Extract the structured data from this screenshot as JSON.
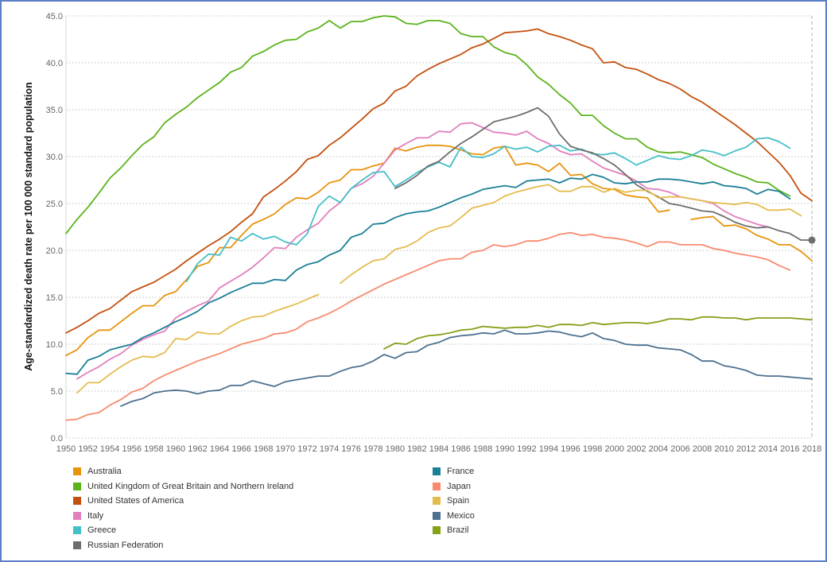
{
  "chart_data": {
    "type": "line",
    "title": "",
    "xlabel": "",
    "ylabel": "Age-standardized death rate per 100 000 standard population",
    "xlim": [
      1950,
      2018
    ],
    "ylim": [
      0,
      45
    ],
    "grid": true,
    "legend_position": "bottom",
    "x_ticks": [
      "1950",
      "1952",
      "1954",
      "1956",
      "1958",
      "1960",
      "1962",
      "1964",
      "1966",
      "1968",
      "1970",
      "1972",
      "1974",
      "1976",
      "1978",
      "1980",
      "1982",
      "1984",
      "1986",
      "1988",
      "1990",
      "1992",
      "1994",
      "1996",
      "1998",
      "2000",
      "2002",
      "2004",
      "2006",
      "2008",
      "2010",
      "2012",
      "2014",
      "2016",
      "2018"
    ],
    "y_ticks": [
      "0.0",
      "5.0",
      "10.0",
      "15.0",
      "20.0",
      "25.0",
      "30.0",
      "35.0",
      "40.0",
      "45.0"
    ],
    "end_marker": {
      "series": "Russian Federation",
      "x": 2018,
      "y": 21.1
    },
    "series": [
      {
        "name": "Australia",
        "color": "#e8930c",
        "start": 1950,
        "values": [
          8.8,
          9.4,
          10.7,
          11.5,
          11.5,
          12.4,
          13.3,
          14.1,
          14.1,
          15.2,
          15.6,
          16.9,
          18.3,
          18.7,
          20.3,
          20.3,
          21.6,
          22.8,
          23.3,
          23.9,
          24.9,
          25.6,
          25.5,
          26.2,
          27.2,
          27.5,
          28.6,
          28.6,
          29.0,
          29.3,
          30.9,
          30.6,
          31.0,
          31.2,
          31.2,
          31.1,
          30.7,
          30.3,
          30.2,
          30.9,
          31.1,
          29.1,
          29.3,
          29.1,
          28.4,
          29.3,
          28.0,
          28.1,
          27.1,
          26.6,
          26.5,
          25.9,
          25.7,
          25.6,
          24.1,
          24.3,
          null,
          23.3,
          23.5,
          23.6,
          22.6,
          22.7,
          22.3,
          21.6,
          21.2,
          20.6,
          20.6,
          19.9,
          18.9
        ]
      },
      {
        "name": "United Kingdom of Great Britain and Northern Ireland",
        "color": "#5bb31c",
        "start": 1950,
        "values": [
          21.8,
          23.3,
          24.6,
          26.1,
          27.7,
          28.8,
          30.1,
          31.3,
          32.1,
          33.6,
          34.5,
          35.3,
          36.3,
          37.1,
          37.9,
          39.0,
          39.5,
          40.7,
          41.2,
          41.9,
          42.4,
          42.5,
          43.3,
          43.7,
          44.5,
          43.7,
          44.4,
          44.4,
          44.8,
          45.0,
          44.9,
          44.2,
          44.1,
          44.5,
          44.5,
          44.2,
          43.1,
          42.8,
          42.8,
          41.7,
          41.1,
          40.8,
          39.8,
          38.5,
          37.7,
          36.6,
          35.7,
          34.4,
          34.4,
          33.3,
          32.5,
          31.9,
          31.9,
          31.0,
          30.5,
          30.4,
          30.5,
          30.2,
          29.9,
          29.2,
          28.7,
          28.2,
          27.8,
          27.3,
          27.2,
          26.4,
          25.8
        ]
      },
      {
        "name": "United States of America",
        "color": "#c4500f",
        "start": 1950,
        "values": [
          11.2,
          11.8,
          12.5,
          13.3,
          13.8,
          14.7,
          15.6,
          16.1,
          16.6,
          17.3,
          18.0,
          18.9,
          19.7,
          20.5,
          21.2,
          22.0,
          23.0,
          23.9,
          25.7,
          26.5,
          27.4,
          28.4,
          29.7,
          30.1,
          31.2,
          32.0,
          33.0,
          34.0,
          35.1,
          35.7,
          37.0,
          37.5,
          38.6,
          39.3,
          39.9,
          40.4,
          40.9,
          41.6,
          42.0,
          42.6,
          43.2,
          43.3,
          43.4,
          43.6,
          43.1,
          42.8,
          42.4,
          41.9,
          41.5,
          40.0,
          40.1,
          39.5,
          39.3,
          38.8,
          38.2,
          37.8,
          37.2,
          36.4,
          35.8,
          35.0,
          34.2,
          33.4,
          32.5,
          31.6,
          30.5,
          29.4,
          28.0,
          26.1,
          25.3
        ]
      },
      {
        "name": "Italy",
        "color": "#e27fbd",
        "start": 1951,
        "values": [
          6.3,
          7.0,
          7.6,
          8.4,
          9.0,
          9.9,
          10.5,
          11.0,
          11.4,
          12.8,
          13.5,
          14.1,
          14.6,
          16.0,
          16.7,
          17.4,
          18.2,
          19.2,
          20.3,
          20.2,
          21.4,
          22.2,
          22.9,
          24.2,
          25.1,
          26.6,
          27.1,
          27.9,
          29.3,
          30.7,
          31.4,
          32.0,
          32.0,
          32.7,
          32.6,
          33.5,
          33.6,
          33.1,
          32.6,
          32.5,
          32.3,
          32.7,
          31.9,
          31.4,
          30.6,
          30.2,
          30.3,
          29.5,
          28.8,
          28.4,
          28.0,
          27.4,
          26.6,
          26.5,
          26.2,
          25.7,
          25.5,
          25.3,
          25.0,
          24.2,
          23.6,
          23.2,
          22.8,
          22.5
        ]
      },
      {
        "name": "Greece",
        "color": "#45bfc8",
        "start": 1961,
        "values": [
          16.7,
          18.6,
          19.6,
          19.5,
          21.4,
          21.0,
          21.8,
          21.2,
          21.5,
          20.9,
          20.6,
          21.8,
          24.7,
          25.8,
          25.1,
          26.6,
          27.5,
          28.3,
          28.4,
          26.8,
          27.5,
          28.3,
          28.9,
          29.4,
          28.9,
          31.0,
          30.0,
          29.9,
          30.3,
          31.1,
          30.8,
          31.0,
          30.5,
          31.1,
          31.2,
          30.6,
          30.8,
          30.3,
          30.2,
          30.4,
          29.8,
          29.1,
          29.6,
          30.1,
          29.8,
          29.7,
          30.1,
          30.7,
          30.5,
          30.1,
          30.6,
          31.0,
          31.9,
          32.0,
          31.6,
          30.9
        ]
      },
      {
        "name": "Russian Federation",
        "color": "#6d6d6a",
        "start": 1980,
        "values": [
          26.6,
          27.2,
          28.0,
          29.0,
          29.5,
          30.5,
          31.4,
          32.1,
          32.9,
          33.7,
          34.0,
          34.3,
          34.7,
          35.2,
          34.3,
          32.4,
          31.1,
          30.7,
          30.4,
          29.8,
          29.1,
          28.1,
          27.0,
          26.3,
          25.7,
          25.0,
          24.8,
          24.5,
          24.2,
          24.1,
          23.6,
          23.0,
          22.6,
          22.4,
          22.5,
          22.1,
          21.8,
          21.1,
          21.1
        ]
      },
      {
        "name": "France",
        "color": "#1b7f96",
        "start": 1950,
        "values": [
          6.9,
          6.8,
          8.3,
          8.7,
          9.4,
          9.7,
          10.0,
          10.7,
          11.2,
          11.8,
          12.4,
          12.9,
          13.5,
          14.4,
          14.9,
          15.5,
          16.0,
          16.5,
          16.5,
          16.9,
          16.8,
          17.9,
          18.5,
          18.8,
          19.5,
          20.0,
          21.4,
          21.8,
          22.8,
          22.9,
          23.5,
          23.9,
          24.1,
          24.2,
          24.6,
          25.1,
          25.6,
          26.0,
          26.5,
          26.7,
          26.9,
          26.7,
          27.4,
          27.5,
          27.6,
          27.2,
          27.7,
          27.6,
          28.1,
          27.8,
          27.2,
          27.1,
          27.3,
          27.3,
          27.6,
          27.6,
          27.5,
          27.3,
          27.1,
          27.3,
          26.9,
          26.8,
          26.6,
          26.0,
          26.5,
          26.3,
          25.5
        ]
      },
      {
        "name": "Japan",
        "color": "#f88a6e",
        "start": 1950,
        "values": [
          1.9,
          2.0,
          2.5,
          2.7,
          3.5,
          4.1,
          4.9,
          5.3,
          6.1,
          6.7,
          7.2,
          7.7,
          8.2,
          8.6,
          9.0,
          9.5,
          10.0,
          10.3,
          10.6,
          11.1,
          11.2,
          11.6,
          12.4,
          12.8,
          13.3,
          13.9,
          14.6,
          15.2,
          15.8,
          16.4,
          16.9,
          17.4,
          17.9,
          18.4,
          18.9,
          19.1,
          19.1,
          19.8,
          20.0,
          20.6,
          20.4,
          20.6,
          21.0,
          21.0,
          21.3,
          21.7,
          21.9,
          21.6,
          21.7,
          21.4,
          21.3,
          21.1,
          20.8,
          20.4,
          20.9,
          20.9,
          20.6,
          20.6,
          20.6,
          20.2,
          20.0,
          19.7,
          19.5,
          19.3,
          19.0,
          18.4,
          17.9
        ]
      },
      {
        "name": "Spain",
        "color": "#e4bc4d",
        "start": 1951,
        "values": [
          4.8,
          5.9,
          5.9,
          6.8,
          7.6,
          8.3,
          8.7,
          8.6,
          9.1,
          10.6,
          10.5,
          11.3,
          11.1,
          11.1,
          11.9,
          12.5,
          12.9,
          13.0,
          13.5,
          13.9,
          14.3,
          14.8,
          15.3,
          null,
          16.5,
          17.4,
          18.2,
          18.9,
          19.1,
          20.1,
          20.4,
          21.0,
          21.9,
          22.4,
          22.6,
          23.5,
          24.5,
          24.8,
          25.1,
          25.8,
          26.2,
          26.5,
          26.8,
          27.0,
          26.3,
          26.3,
          26.8,
          26.8,
          26.2,
          26.6,
          26.2,
          26.4,
          26.4,
          25.6,
          25.7,
          25.7,
          25.5,
          25.3,
          25.1,
          25.0,
          24.9,
          25.1,
          24.9,
          24.3,
          24.3,
          24.4,
          23.7
        ]
      },
      {
        "name": "Mexico",
        "color": "#4d7190",
        "start": 1955,
        "values": [
          3.4,
          3.9,
          4.2,
          4.8,
          5.0,
          5.1,
          5.0,
          4.7,
          5.0,
          5.1,
          5.6,
          5.6,
          6.1,
          5.8,
          5.5,
          6.0,
          6.2,
          6.4,
          6.6,
          6.6,
          7.1,
          7.5,
          7.7,
          8.2,
          8.9,
          8.5,
          9.1,
          9.2,
          9.9,
          10.2,
          10.7,
          10.9,
          11.0,
          11.2,
          11.1,
          11.5,
          11.1,
          11.1,
          11.2,
          11.4,
          11.3,
          11.0,
          10.8,
          11.2,
          10.6,
          10.4,
          10.0,
          9.9,
          9.9,
          9.6,
          9.5,
          9.4,
          8.9,
          8.2,
          8.2,
          7.7,
          7.5,
          7.2,
          6.7,
          6.6,
          6.6,
          6.5,
          6.4,
          6.3
        ]
      },
      {
        "name": "Brazil",
        "color": "#85a019",
        "start": 1979,
        "values": [
          9.5,
          10.1,
          10.0,
          10.6,
          10.9,
          11.0,
          11.2,
          11.5,
          11.6,
          11.9,
          11.8,
          11.7,
          11.8,
          11.8,
          12.0,
          11.8,
          12.1,
          12.1,
          12.0,
          12.3,
          12.1,
          12.2,
          12.3,
          12.3,
          12.2,
          12.4,
          12.7,
          12.7,
          12.6,
          12.9,
          12.9,
          12.8,
          12.8,
          12.6,
          12.8,
          12.8,
          12.8,
          12.8,
          12.7,
          12.6
        ]
      }
    ],
    "legend": {
      "left_column": [
        "Australia",
        "United Kingdom of Great Britain and Northern Ireland",
        "United States of America",
        "Italy",
        "Greece",
        "Russian Federation"
      ],
      "right_column": [
        "France",
        "Japan",
        "Spain",
        "Mexico",
        "Brazil"
      ]
    }
  }
}
